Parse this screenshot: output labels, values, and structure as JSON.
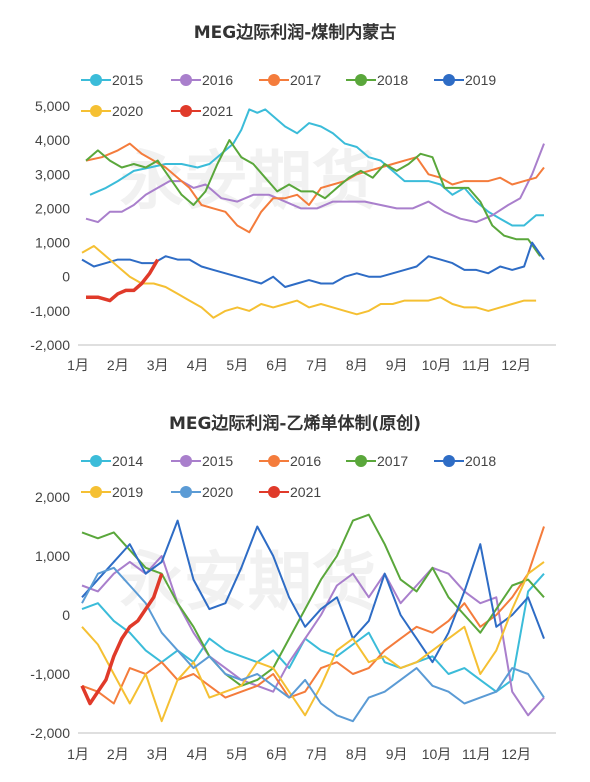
{
  "chart_data": [
    {
      "type": "line",
      "title": "MEG边际利润-煤制内蒙古",
      "x_ticks": [
        "1月",
        "2月",
        "3月",
        "4月",
        "5月",
        "6月",
        "7月",
        "8月",
        "9月",
        "10月",
        "11月",
        "12月"
      ],
      "ylim": [
        -2000,
        5000
      ],
      "y_ticks": [
        "5,000",
        "4,000",
        "3,000",
        "2,000",
        "1,000",
        "0",
        "-1,000",
        "-2,000"
      ],
      "y_tick_values": [
        5000,
        4000,
        3000,
        2000,
        1000,
        0,
        -1000,
        -2000
      ],
      "legend_position": "top",
      "grid": false,
      "series": [
        {
          "name": "2015",
          "color": "#3bbcd9",
          "x": [
            0.3,
            0.7,
            1.0,
            1.4,
            1.8,
            2.2,
            2.6,
            3.0,
            3.3,
            3.6,
            3.9,
            4.1,
            4.3,
            4.5,
            4.7,
            4.9,
            5.2,
            5.5,
            5.8,
            6.1,
            6.4,
            6.7,
            7.0,
            7.3,
            7.6,
            7.9,
            8.2,
            8.5,
            8.8,
            9.1,
            9.4,
            9.7,
            10.0,
            10.3,
            10.6,
            10.9,
            11.2,
            11.5,
            11.7
          ],
          "y": [
            2400,
            2600,
            2800,
            3100,
            3200,
            3300,
            3300,
            3200,
            3300,
            3600,
            3900,
            4300,
            4900,
            4800,
            4900,
            4700,
            4400,
            4200,
            4500,
            4400,
            4200,
            3900,
            3800,
            3500,
            3400,
            3100,
            2800,
            2800,
            2800,
            2700,
            2400,
            2600,
            2200,
            1900,
            1700,
            1500,
            1500,
            1800,
            1800
          ]
        },
        {
          "name": "2016",
          "color": "#a97fcc",
          "x": [
            0.2,
            0.5,
            0.8,
            1.1,
            1.4,
            1.7,
            2.0,
            2.3,
            2.6,
            2.9,
            3.2,
            3.6,
            4.0,
            4.4,
            4.8,
            5.2,
            5.6,
            6.0,
            6.4,
            6.8,
            7.2,
            7.6,
            8.0,
            8.4,
            8.8,
            9.2,
            9.6,
            10.0,
            10.4,
            10.8,
            11.1,
            11.4,
            11.7
          ],
          "y": [
            1700,
            1600,
            1900,
            1900,
            2100,
            2400,
            2600,
            2800,
            2800,
            2600,
            2700,
            2300,
            2200,
            2400,
            2400,
            2200,
            2000,
            2000,
            2200,
            2200,
            2200,
            2100,
            2000,
            2000,
            2200,
            1900,
            1700,
            1600,
            1800,
            2100,
            2300,
            3000,
            3900
          ]
        },
        {
          "name": "2017",
          "color": "#f47c3c",
          "x": [
            0.2,
            0.6,
            1.0,
            1.3,
            1.6,
            1.9,
            2.2,
            2.5,
            2.8,
            3.1,
            3.4,
            3.7,
            4.0,
            4.3,
            4.6,
            4.9,
            5.2,
            5.5,
            5.8,
            6.1,
            6.4,
            6.7,
            7.0,
            7.3,
            7.6,
            7.9,
            8.2,
            8.5,
            8.8,
            9.1,
            9.4,
            9.7,
            10.0,
            10.3,
            10.6,
            10.9,
            11.2,
            11.5,
            11.7
          ],
          "y": [
            3400,
            3500,
            3700,
            3900,
            3600,
            3400,
            3200,
            2900,
            2600,
            2100,
            2000,
            1900,
            1500,
            1300,
            1900,
            2300,
            2300,
            2400,
            2100,
            2600,
            2700,
            2800,
            3000,
            3100,
            3200,
            3300,
            3400,
            3500,
            3000,
            2900,
            2700,
            2800,
            2800,
            2800,
            2900,
            2700,
            2800,
            2900,
            3200
          ]
        },
        {
          "name": "2018",
          "color": "#5aa73b",
          "x": [
            0.2,
            0.5,
            0.8,
            1.1,
            1.4,
            1.7,
            2.0,
            2.3,
            2.6,
            2.9,
            3.2,
            3.5,
            3.8,
            4.1,
            4.4,
            4.7,
            5.0,
            5.3,
            5.6,
            5.9,
            6.2,
            6.5,
            6.8,
            7.1,
            7.4,
            7.7,
            8.0,
            8.3,
            8.6,
            8.9,
            9.2,
            9.5,
            9.8,
            10.1,
            10.4,
            10.7,
            11.0,
            11.3,
            11.6
          ],
          "y": [
            3400,
            3700,
            3400,
            3200,
            3300,
            3200,
            3400,
            2900,
            2400,
            2100,
            2500,
            3300,
            4000,
            3500,
            3300,
            2900,
            2500,
            2700,
            2500,
            2500,
            2300,
            2600,
            2900,
            3100,
            2900,
            3300,
            3100,
            3300,
            3600,
            3500,
            2600,
            2600,
            2600,
            2200,
            1500,
            1200,
            1100,
            1100,
            600
          ]
        },
        {
          "name": "2019",
          "color": "#2e6cc5",
          "x": [
            0.1,
            0.4,
            0.7,
            1.0,
            1.3,
            1.6,
            1.9,
            2.2,
            2.5,
            2.8,
            3.1,
            3.4,
            3.7,
            4.0,
            4.3,
            4.6,
            4.9,
            5.2,
            5.5,
            5.8,
            6.1,
            6.4,
            6.7,
            7.0,
            7.3,
            7.6,
            7.9,
            8.2,
            8.5,
            8.8,
            9.1,
            9.4,
            9.7,
            10.0,
            10.3,
            10.6,
            10.9,
            11.2,
            11.4,
            11.7
          ],
          "y": [
            500,
            300,
            400,
            500,
            500,
            400,
            400,
            600,
            500,
            500,
            300,
            200,
            100,
            0,
            -100,
            -200,
            0,
            -300,
            -200,
            -100,
            -200,
            -200,
            0,
            100,
            0,
            0,
            100,
            200,
            300,
            600,
            500,
            400,
            200,
            200,
            100,
            300,
            200,
            300,
            1000,
            500
          ]
        },
        {
          "name": "2020",
          "color": "#f5c033",
          "x": [
            0.1,
            0.4,
            0.7,
            1.0,
            1.3,
            1.6,
            1.9,
            2.2,
            2.5,
            2.8,
            3.1,
            3.4,
            3.7,
            4.0,
            4.3,
            4.6,
            4.9,
            5.2,
            5.5,
            5.8,
            6.1,
            6.4,
            6.7,
            7.0,
            7.3,
            7.6,
            7.9,
            8.2,
            8.5,
            8.8,
            9.1,
            9.4,
            9.7,
            10.0,
            10.3,
            10.6,
            10.9,
            11.2,
            11.5
          ],
          "y": [
            700,
            900,
            600,
            300,
            0,
            -200,
            -200,
            -300,
            -500,
            -700,
            -900,
            -1200,
            -1000,
            -900,
            -1000,
            -800,
            -900,
            -800,
            -700,
            -900,
            -800,
            -900,
            -1000,
            -1100,
            -1000,
            -800,
            -800,
            -700,
            -700,
            -700,
            -600,
            -800,
            -900,
            -900,
            -1000,
            -900,
            -800,
            -700,
            -700
          ]
        },
        {
          "name": "2021",
          "color": "#e03a2a",
          "x": [
            0.2,
            0.5,
            0.8,
            1.0,
            1.2,
            1.4,
            1.6,
            1.8,
            2.0
          ],
          "y": [
            -600,
            -600,
            -700,
            -500,
            -400,
            -400,
            -200,
            100,
            500
          ]
        }
      ]
    },
    {
      "type": "line",
      "title": "MEG边际利润-乙烯单体制(原创)",
      "x_ticks": [
        "1月",
        "2月",
        "3月",
        "4月",
        "5月",
        "6月",
        "7月",
        "8月",
        "9月",
        "10月",
        "11月",
        "12月"
      ],
      "ylim": [
        -2000,
        2000
      ],
      "y_ticks": [
        "2,000",
        "1,000",
        "0",
        "-1,000",
        "-2,000"
      ],
      "y_tick_values": [
        2000,
        1000,
        0,
        -1000,
        -2000
      ],
      "legend_position": "top",
      "grid": false,
      "series": [
        {
          "name": "2014",
          "color": "#3bbcd9",
          "x": [
            0.1,
            0.5,
            0.9,
            1.3,
            1.7,
            2.1,
            2.5,
            2.9,
            3.3,
            3.7,
            4.1,
            4.5,
            4.9,
            5.3,
            5.7,
            6.1,
            6.5,
            6.9,
            7.3,
            7.7,
            8.1,
            8.5,
            8.9,
            9.3,
            9.7,
            10.1,
            10.5,
            10.9,
            11.3,
            11.7
          ],
          "y": [
            100,
            200,
            -100,
            -300,
            -600,
            -800,
            -600,
            -800,
            -400,
            -600,
            -700,
            -800,
            -600,
            -900,
            -400,
            -600,
            -700,
            -500,
            -300,
            -800,
            -900,
            -800,
            -700,
            -1000,
            -900,
            -1100,
            -1300,
            -1100,
            400,
            700
          ]
        },
        {
          "name": "2015",
          "color": "#a97fcc",
          "x": [
            0.1,
            0.5,
            0.9,
            1.3,
            1.7,
            2.1,
            2.5,
            2.9,
            3.3,
            3.7,
            4.1,
            4.5,
            4.9,
            5.3,
            5.7,
            6.1,
            6.5,
            6.9,
            7.3,
            7.7,
            8.1,
            8.5,
            8.9,
            9.3,
            9.7,
            10.1,
            10.5,
            10.9,
            11.3,
            11.7
          ],
          "y": [
            500,
            400,
            700,
            900,
            700,
            1000,
            200,
            -300,
            -700,
            -900,
            -1100,
            -1200,
            -1300,
            -800,
            -400,
            0,
            500,
            700,
            300,
            700,
            200,
            500,
            800,
            700,
            400,
            200,
            300,
            -1300,
            -1700,
            -1400
          ]
        },
        {
          "name": "2016",
          "color": "#f47c3c",
          "x": [
            0.1,
            0.5,
            0.9,
            1.3,
            1.7,
            2.1,
            2.5,
            2.9,
            3.3,
            3.7,
            4.1,
            4.5,
            4.9,
            5.3,
            5.7,
            6.1,
            6.5,
            6.9,
            7.3,
            7.7,
            8.1,
            8.5,
            8.9,
            9.3,
            9.7,
            10.1,
            10.5,
            10.9,
            11.3,
            11.7
          ],
          "y": [
            -1200,
            -1300,
            -1500,
            -900,
            -1000,
            -800,
            -1100,
            -1000,
            -1200,
            -1400,
            -1300,
            -1200,
            -1000,
            -1400,
            -1300,
            -900,
            -800,
            -1000,
            -900,
            -600,
            -400,
            -200,
            -300,
            -100,
            200,
            -200,
            0,
            300,
            700,
            1500
          ]
        },
        {
          "name": "2017",
          "color": "#5aa73b",
          "x": [
            0.1,
            0.5,
            0.9,
            1.3,
            1.7,
            2.1,
            2.5,
            2.9,
            3.3,
            3.7,
            4.1,
            4.5,
            4.9,
            5.3,
            5.7,
            6.1,
            6.5,
            6.9,
            7.3,
            7.7,
            8.1,
            8.5,
            8.9,
            9.3,
            9.7,
            10.1,
            10.5,
            10.9,
            11.3,
            11.7
          ],
          "y": [
            1400,
            1300,
            1400,
            1100,
            800,
            700,
            200,
            -200,
            -700,
            -1000,
            -1200,
            -1100,
            -900,
            -400,
            100,
            600,
            1000,
            1600,
            1700,
            1200,
            600,
            400,
            800,
            300,
            0,
            -300,
            100,
            500,
            600,
            300
          ]
        },
        {
          "name": "2018",
          "color": "#2e6cc5",
          "x": [
            0.1,
            0.5,
            0.9,
            1.3,
            1.7,
            2.1,
            2.5,
            2.9,
            3.3,
            3.7,
            4.1,
            4.5,
            4.9,
            5.3,
            5.7,
            6.1,
            6.5,
            6.9,
            7.3,
            7.7,
            8.1,
            8.5,
            8.9,
            9.3,
            9.7,
            10.1,
            10.5,
            10.9,
            11.3,
            11.7
          ],
          "y": [
            300,
            600,
            900,
            1200,
            700,
            900,
            1600,
            600,
            100,
            200,
            800,
            1500,
            1000,
            300,
            -200,
            100,
            300,
            -400,
            -100,
            700,
            0,
            -400,
            -800,
            -300,
            400,
            1200,
            -200,
            0,
            300,
            -400
          ]
        },
        {
          "name": "2019",
          "color": "#f5c033",
          "x": [
            0.1,
            0.5,
            0.9,
            1.3,
            1.7,
            2.1,
            2.5,
            2.9,
            3.3,
            3.7,
            4.1,
            4.5,
            4.9,
            5.3,
            5.7,
            6.1,
            6.5,
            6.9,
            7.3,
            7.7,
            8.1,
            8.5,
            8.9,
            9.3,
            9.7,
            10.1,
            10.5,
            10.9,
            11.3,
            11.7
          ],
          "y": [
            -200,
            -500,
            -1000,
            -1500,
            -1000,
            -1800,
            -1100,
            -800,
            -1400,
            -1300,
            -1200,
            -800,
            -900,
            -1300,
            -1700,
            -1200,
            -600,
            -400,
            -800,
            -700,
            -900,
            -800,
            -600,
            -400,
            -200,
            -1000,
            -600,
            100,
            700,
            900
          ]
        },
        {
          "name": "2020",
          "color": "#5b9bd5",
          "x": [
            0.1,
            0.5,
            0.9,
            1.3,
            1.7,
            2.1,
            2.5,
            2.9,
            3.3,
            3.7,
            4.1,
            4.5,
            4.9,
            5.3,
            5.7,
            6.1,
            6.5,
            6.9,
            7.3,
            7.7,
            8.1,
            8.5,
            8.9,
            9.3,
            9.7,
            10.1,
            10.5,
            10.9,
            11.3,
            11.7
          ],
          "y": [
            200,
            700,
            800,
            500,
            200,
            -300,
            -600,
            -900,
            -700,
            -1000,
            -1100,
            -1000,
            -1200,
            -1400,
            -1100,
            -1500,
            -1700,
            -1800,
            -1400,
            -1300,
            -1100,
            -900,
            -1200,
            -1300,
            -1500,
            -1400,
            -1300,
            -900,
            -1000,
            -1400
          ]
        },
        {
          "name": "2021",
          "color": "#e03a2a",
          "x": [
            0.1,
            0.3,
            0.5,
            0.7,
            0.9,
            1.1,
            1.3,
            1.5,
            1.7,
            1.9,
            2.1
          ],
          "y": [
            -1200,
            -1500,
            -1300,
            -1100,
            -700,
            -400,
            -200,
            -100,
            100,
            300,
            700
          ]
        }
      ]
    }
  ]
}
